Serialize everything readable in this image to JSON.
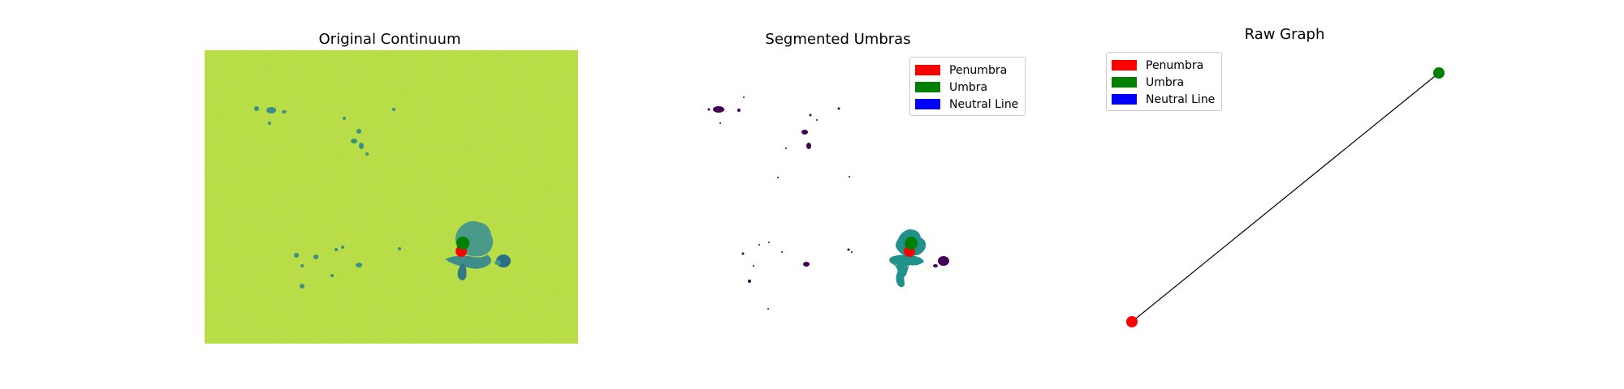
{
  "panels": [
    {
      "title": "Original Continuum"
    },
    {
      "title": "Segmented Umbras"
    },
    {
      "title": "Raw Graph"
    }
  ],
  "legend": {
    "items": [
      {
        "label": "Penumbra",
        "color": "#ff0000"
      },
      {
        "label": "Umbra",
        "color": "#008000"
      },
      {
        "label": "Neutral Line",
        "color": "#0000ff"
      }
    ]
  },
  "colors": {
    "continuum_background": "#b8dc3c",
    "spot_dark": "#1f8f8c",
    "umbra_region": "#21918c",
    "small_spot": "#440154",
    "edge_line": "#000000",
    "penumbra_node": "#ff0000",
    "umbra_node": "#008000"
  },
  "graph": {
    "nodes": [
      {
        "type": "Penumbra",
        "color": "#ff0000"
      },
      {
        "type": "Umbra",
        "color": "#008000"
      }
    ],
    "edges": [
      {
        "from": 0,
        "to": 1
      }
    ]
  }
}
